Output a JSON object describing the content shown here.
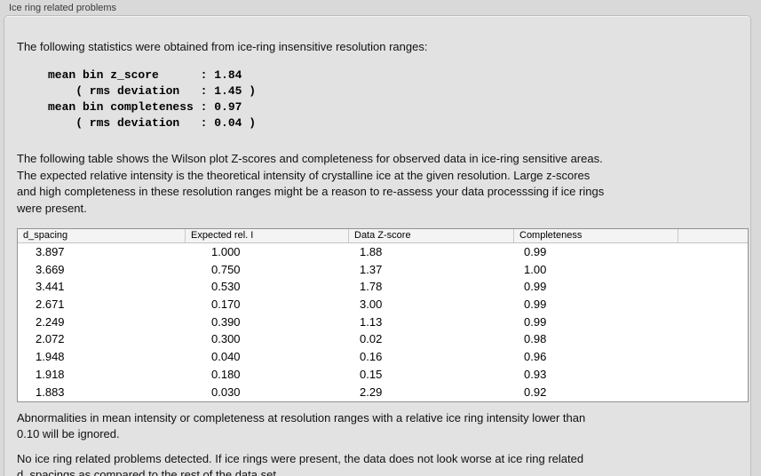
{
  "group": {
    "label": "Ice ring related problems"
  },
  "intro": "The following statistics were obtained from ice-ring insensitive resolution ranges:",
  "stats": {
    "lines": [
      "mean bin z_score      : 1.84",
      "    ( rms deviation   : 1.45 )",
      "mean bin completeness : 0.97",
      "    ( rms deviation   : 0.04 )"
    ]
  },
  "description": "The following table shows the Wilson plot Z-scores and completeness for observed data in ice-ring sensitive areas.\nThe expected relative intensity is the theoretical intensity of crystalline ice at the given resolution. Large z-scores\nand high completeness in these resolution ranges might be a reason to re-assess your data processsing if ice rings\nwere present.",
  "table": {
    "columns": [
      "d_spacing",
      "Expected rel. I",
      "Data Z-score",
      "Completeness"
    ],
    "rows": [
      [
        "3.897",
        "1.000",
        "1.88",
        "0.99"
      ],
      [
        "3.669",
        "0.750",
        "1.37",
        "1.00"
      ],
      [
        "3.441",
        "0.530",
        "1.78",
        "0.99"
      ],
      [
        "2.671",
        "0.170",
        "3.00",
        "0.99"
      ],
      [
        "2.249",
        "0.390",
        "1.13",
        "0.99"
      ],
      [
        "2.072",
        "0.300",
        "0.02",
        "0.98"
      ],
      [
        "1.948",
        "0.040",
        "0.16",
        "0.96"
      ],
      [
        "1.918",
        "0.180",
        "0.15",
        "0.93"
      ],
      [
        "1.883",
        "0.030",
        "2.29",
        "0.92"
      ]
    ]
  },
  "notes": [
    "Abnormalities in mean intensity or completeness at resolution ranges with a relative ice ring intensity lower than\n0.10 will be ignored.",
    "No ice ring related problems detected. If ice rings were present, the data does not look worse at ice ring related\nd_spacings as compared to the rest of the data set."
  ],
  "colors": {
    "window_bg": "#d9d9d9",
    "panel_bg": "#e2e2e2",
    "panel_border": "#bdbdbd",
    "table_bg": "#ffffff",
    "table_border": "#919191",
    "table_header_bg": "#f4f4f4",
    "text": "#111111"
  }
}
